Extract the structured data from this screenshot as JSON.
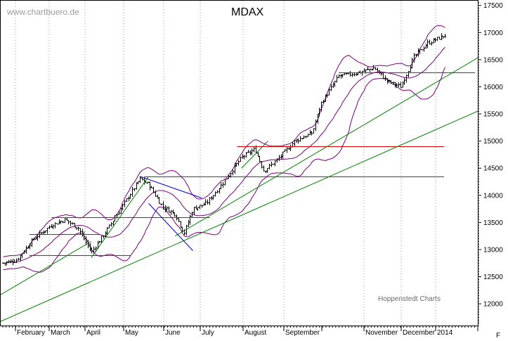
{
  "chart_data": {
    "type": "ohlc",
    "title": "MDAX",
    "watermark": "www.chartbuero.de",
    "credit": "Hoppenstedt Charts",
    "ylim": [
      11600,
      17600
    ],
    "y_ticks": [
      12000,
      12500,
      13000,
      13500,
      14000,
      14500,
      15000,
      15500,
      16000,
      16500,
      17000,
      17500
    ],
    "y_tick_labels": [
      "12000",
      "12500",
      "13000",
      "13500",
      "14000",
      "14500",
      "15000",
      "15500",
      "16000",
      "16500",
      "17000",
      "17500"
    ],
    "x_labels": [
      "February",
      "March",
      "April",
      "May",
      "June",
      "July",
      "August",
      "September",
      "November",
      "December",
      "2014"
    ],
    "grid": "vertical-dotted",
    "colors": {
      "bars": "#000000",
      "bands": "#7a007a",
      "support": "#e00000",
      "trend": "#008000",
      "channel": "#0000cc"
    },
    "price_path": [
      [
        0,
        12750
      ],
      [
        0.03,
        12800
      ],
      [
        0.07,
        13200
      ],
      [
        0.11,
        13450
      ],
      [
        0.14,
        13550
      ],
      [
        0.17,
        13400
      ],
      [
        0.2,
        12950
      ],
      [
        0.23,
        13300
      ],
      [
        0.27,
        13800
      ],
      [
        0.31,
        14300
      ],
      [
        0.33,
        14200
      ],
      [
        0.36,
        13800
      ],
      [
        0.39,
        13650
      ],
      [
        0.41,
        13300
      ],
      [
        0.43,
        13750
      ],
      [
        0.46,
        13850
      ],
      [
        0.5,
        14250
      ],
      [
        0.54,
        14700
      ],
      [
        0.57,
        14850
      ],
      [
        0.59,
        14450
      ],
      [
        0.62,
        14650
      ],
      [
        0.66,
        15000
      ],
      [
        0.7,
        15150
      ],
      [
        0.72,
        15700
      ],
      [
        0.76,
        16200
      ],
      [
        0.8,
        16250
      ],
      [
        0.84,
        16350
      ],
      [
        0.87,
        16100
      ],
      [
        0.9,
        16000
      ],
      [
        0.93,
        16550
      ],
      [
        0.96,
        16800
      ],
      [
        1.0,
        16950
      ]
    ],
    "support_levels": [
      {
        "value": 13280,
        "t": [
          0.06,
          0.19
        ]
      },
      {
        "value": 12900,
        "t": [
          0.06,
          0.26
        ]
      },
      {
        "value": 13600,
        "t": [
          0.11,
          0.44
        ]
      },
      {
        "value": 14350,
        "t": [
          0.32,
          0.97
        ]
      },
      {
        "value": 14900,
        "t": [
          0.53,
          0.97
        ]
      },
      {
        "value": 16270,
        "t": [
          0.76,
          1.04
        ]
      }
    ],
    "trendlines": [
      {
        "from": [
          -0.04,
          11550
        ],
        "to": [
          1.13,
          15750
        ],
        "color": "trend"
      },
      {
        "from": [
          0.39,
          13250
        ],
        "to": [
          1.13,
          16800
        ],
        "color": "trend"
      },
      {
        "from": [
          -0.04,
          12000
        ],
        "to": [
          0.2,
          13150
        ],
        "color": "trend"
      },
      {
        "from": [
          0.2,
          12850
        ],
        "to": [
          0.33,
          14350
        ],
        "color": "trend"
      },
      {
        "from": [
          0.54,
          14500
        ],
        "to": [
          0.6,
          15000
        ],
        "color": "trend"
      },
      {
        "from": [
          0.31,
          14350
        ],
        "to": [
          0.45,
          13950
        ],
        "color": "channel"
      },
      {
        "from": [
          0.33,
          13850
        ],
        "to": [
          0.43,
          12980
        ],
        "color": "channel"
      }
    ]
  }
}
